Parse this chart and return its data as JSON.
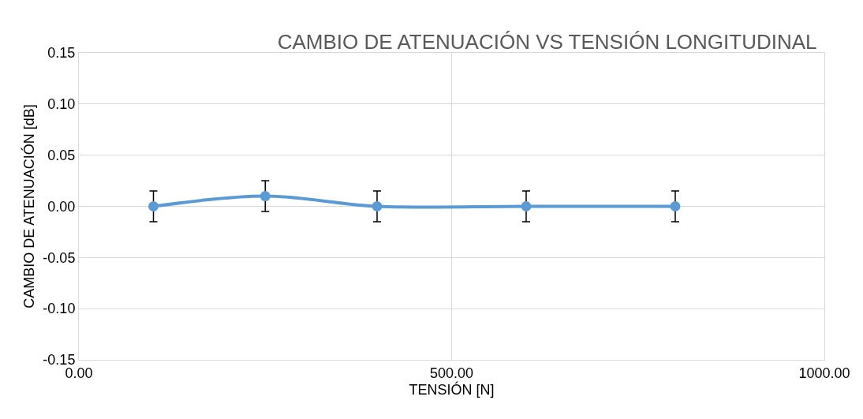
{
  "chart_data": {
    "type": "line",
    "title": "CAMBIO DE ATENUACIÓN VS TENSIÓN LONGITUDINAL",
    "xlabel": "TENSIÓN [N]",
    "ylabel": "CAMBIO DE ATENUACIÓN [dB]",
    "x": [
      100,
      250,
      400,
      600,
      800
    ],
    "series": [
      {
        "color": "#5b9bd5",
        "values": [
          0,
          0.01,
          0,
          0,
          0
        ],
        "errors": [
          0.015,
          0.015,
          0.015,
          0.015,
          0.015
        ]
      }
    ],
    "xlim": [
      0,
      1000
    ],
    "xticks": [
      {
        "value": 0,
        "label": "0.00"
      },
      {
        "value": 500,
        "label": "500.00"
      },
      {
        "value": 1000,
        "label": "1000.00"
      }
    ],
    "ylim": [
      -0.15,
      0.15
    ],
    "yticks": [
      {
        "value": -0.15,
        "label": "-0.15"
      },
      {
        "value": -0.1,
        "label": "-0.10"
      },
      {
        "value": -0.05,
        "label": "-0.05"
      },
      {
        "value": 0,
        "label": "0.00"
      },
      {
        "value": 0.05,
        "label": "0.05"
      },
      {
        "value": 0.1,
        "label": "0.10"
      },
      {
        "value": 0.15,
        "label": "0.15"
      }
    ],
    "grid": true,
    "marker": "circle",
    "line_style": "solid"
  }
}
